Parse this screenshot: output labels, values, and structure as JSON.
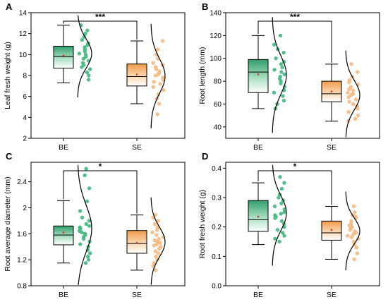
{
  "chart_data": [
    {
      "panel": "A",
      "type": "box",
      "ylabel": "Leaf fresh weight (g)",
      "ylim": [
        2,
        14
      ],
      "yticks": [
        2,
        4,
        6,
        8,
        10,
        12,
        14
      ],
      "categories": [
        "BE",
        "SE"
      ],
      "significance": "***",
      "series": [
        {
          "category": "BE",
          "whisker_low": 7.3,
          "q1": 8.7,
          "median": 9.8,
          "mean": 9.9,
          "q3": 10.8,
          "whisker_high": 12.8,
          "points": [
            12.8,
            12.3,
            12.0,
            11.7,
            11.4,
            11.1,
            10.9,
            10.7,
            10.5,
            10.3,
            10.1,
            10.0,
            9.8,
            9.6,
            9.4,
            9.2,
            9.0,
            8.8,
            8.6,
            8.3,
            8.0,
            7.6
          ]
        },
        {
          "category": "SE",
          "whisker_low": 5.3,
          "q1": 7.0,
          "median": 7.9,
          "mean": 8.1,
          "q3": 9.1,
          "whisker_high": 11.3,
          "points": [
            11.3,
            10.5,
            10.0,
            9.6,
            9.2,
            9.0,
            8.8,
            8.6,
            8.4,
            8.2,
            8.1,
            8.0,
            7.8,
            7.6,
            7.4,
            7.2,
            6.9,
            6.6,
            6.2,
            5.8,
            5.3,
            4.3
          ]
        }
      ]
    },
    {
      "panel": "B",
      "type": "box",
      "ylabel": "Root length (mm)",
      "ylim": [
        30,
        140
      ],
      "yticks": [
        40,
        60,
        80,
        100,
        120,
        140
      ],
      "categories": [
        "BE",
        "SE"
      ],
      "significance": "***",
      "series": [
        {
          "category": "BE",
          "whisker_low": 56,
          "q1": 70,
          "median": 88,
          "mean": 86,
          "q3": 99,
          "whisker_high": 120,
          "points": [
            120,
            112,
            108,
            105,
            100,
            97,
            95,
            92,
            90,
            88,
            86,
            84,
            82,
            80,
            78,
            75,
            72,
            70,
            67,
            63,
            60,
            56
          ]
        },
        {
          "category": "SE",
          "whisker_low": 45,
          "q1": 62,
          "median": 69,
          "mean": 71,
          "q3": 80,
          "whisker_high": 95,
          "points": [
            95,
            88,
            84,
            81,
            79,
            77,
            75,
            73,
            72,
            70,
            69,
            68,
            66,
            64,
            62,
            60,
            58,
            56,
            53,
            50,
            47,
            45
          ]
        }
      ]
    },
    {
      "panel": "C",
      "type": "box",
      "ylabel": "Root average diameter (mm)",
      "ylim": [
        0.8,
        2.7
      ],
      "yticks": [
        0.8,
        1.2,
        1.6,
        2.0,
        2.4
      ],
      "categories": [
        "BE",
        "SE"
      ],
      "significance": "*",
      "series": [
        {
          "category": "BE",
          "whisker_low": 1.15,
          "q1": 1.43,
          "median": 1.58,
          "mean": 1.62,
          "q3": 1.72,
          "whisker_high": 2.11,
          "points": [
            2.6,
            2.5,
            2.3,
            2.1,
            1.95,
            1.85,
            1.8,
            1.75,
            1.72,
            1.7,
            1.68,
            1.66,
            1.64,
            1.62,
            1.6,
            1.58,
            1.55,
            1.52,
            1.48,
            1.44,
            1.4,
            1.35,
            1.3,
            1.25,
            1.2,
            1.15
          ]
        },
        {
          "category": "SE",
          "whisker_low": 1.04,
          "q1": 1.3,
          "median": 1.45,
          "mean": 1.46,
          "q3": 1.65,
          "whisker_high": 1.89,
          "points": [
            1.89,
            1.85,
            1.8,
            1.75,
            1.7,
            1.66,
            1.62,
            1.58,
            1.55,
            1.52,
            1.5,
            1.48,
            1.46,
            1.44,
            1.42,
            1.4,
            1.37,
            1.33,
            1.3,
            1.25,
            1.2,
            1.15,
            1.1,
            1.04
          ]
        }
      ]
    },
    {
      "panel": "D",
      "type": "box",
      "ylabel": "Root fresh weight (g)",
      "ylim": [
        0.0,
        0.42
      ],
      "yticks": [
        0.0,
        0.1,
        0.2,
        0.3,
        0.4
      ],
      "categories": [
        "BE",
        "SE"
      ],
      "significance": "*",
      "series": [
        {
          "category": "BE",
          "whisker_low": 0.14,
          "q1": 0.185,
          "median": 0.225,
          "mean": 0.235,
          "q3": 0.29,
          "whisker_high": 0.35,
          "points": [
            0.37,
            0.35,
            0.33,
            0.31,
            0.3,
            0.29,
            0.28,
            0.27,
            0.26,
            0.25,
            0.245,
            0.24,
            0.235,
            0.23,
            0.22,
            0.21,
            0.2,
            0.19,
            0.18,
            0.17,
            0.16,
            0.15
          ]
        },
        {
          "category": "SE",
          "whisker_low": 0.09,
          "q1": 0.155,
          "median": 0.18,
          "mean": 0.19,
          "q3": 0.22,
          "whisker_high": 0.27,
          "points": [
            0.27,
            0.25,
            0.24,
            0.235,
            0.23,
            0.22,
            0.21,
            0.205,
            0.2,
            0.195,
            0.19,
            0.185,
            0.18,
            0.175,
            0.17,
            0.165,
            0.16,
            0.15,
            0.14,
            0.13,
            0.11,
            0.09
          ]
        }
      ]
    }
  ],
  "colors": {
    "be_fill": "#3fb07c",
    "be_points": "#4cc48a",
    "se_fill": "#f5a860",
    "se_points": "#f7c28c",
    "mean_marker": "#d9302b"
  }
}
